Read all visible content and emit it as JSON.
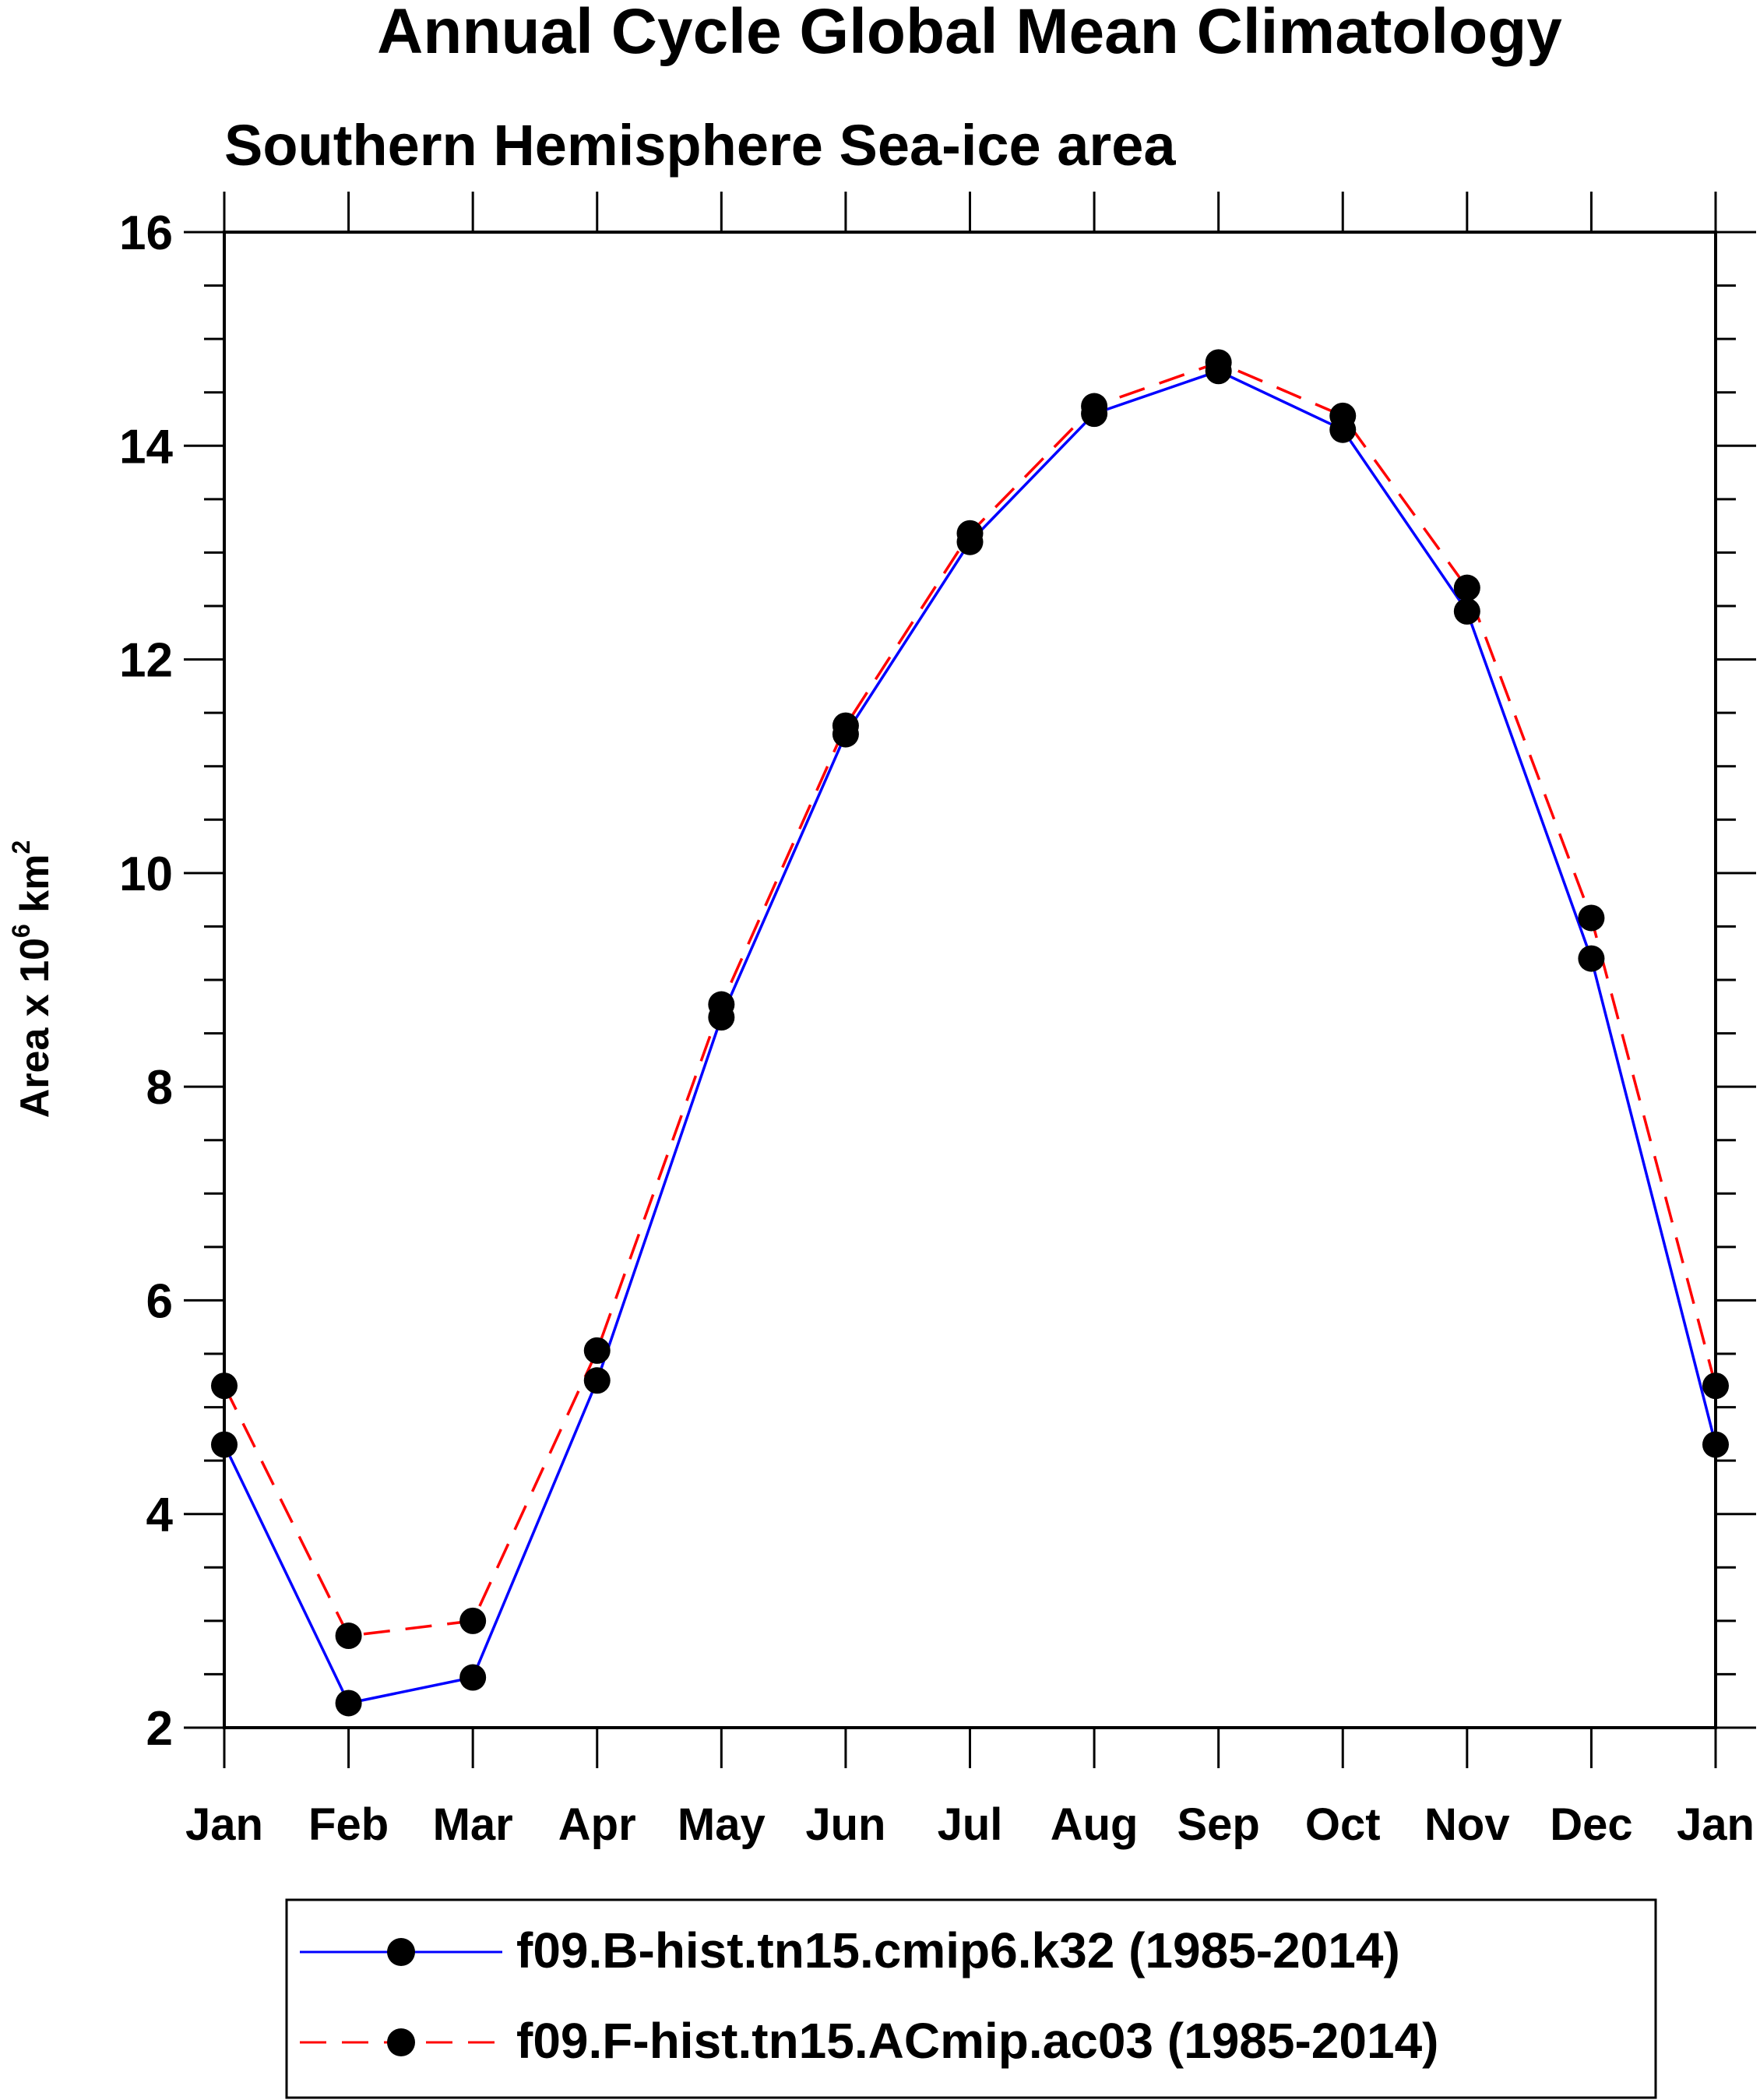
{
  "chart_data": {
    "type": "line",
    "title": "Annual Cycle Global Mean Climatology",
    "subtitle": "Southern Hemisphere Sea-ice area",
    "ylabel": "Area x 10",
    "ylabel_exp": "6",
    "ylabel_unit": " km",
    "ylabel_unit_exp": "2",
    "xlabel": "",
    "categories": [
      "Jan",
      "Feb",
      "Mar",
      "Apr",
      "May",
      "Jun",
      "Jul",
      "Aug",
      "Sep",
      "Oct",
      "Nov",
      "Dec",
      "Jan"
    ],
    "ylim": [
      2,
      16
    ],
    "yticks": [
      "2",
      "4",
      "6",
      "8",
      "10",
      "12",
      "14",
      "16"
    ],
    "grid": false,
    "legend_position": "bottom",
    "series": [
      {
        "name": "f09.B-hist.tn15.cmip6.k32 (1985-2014)",
        "color": "#0000ff",
        "style": "solid",
        "values": [
          4.65,
          2.23,
          2.47,
          5.25,
          8.65,
          11.3,
          13.1,
          14.3,
          14.7,
          14.15,
          12.45,
          9.2,
          4.65
        ]
      },
      {
        "name": "f09.F-hist.tn15.ACmip.ac03 (1985-2014)",
        "color": "#ff0000",
        "style": "dashed",
        "values": [
          5.2,
          2.86,
          3.0,
          5.53,
          8.77,
          11.38,
          13.18,
          14.37,
          14.78,
          14.28,
          12.67,
          9.58,
          5.2
        ]
      }
    ]
  }
}
